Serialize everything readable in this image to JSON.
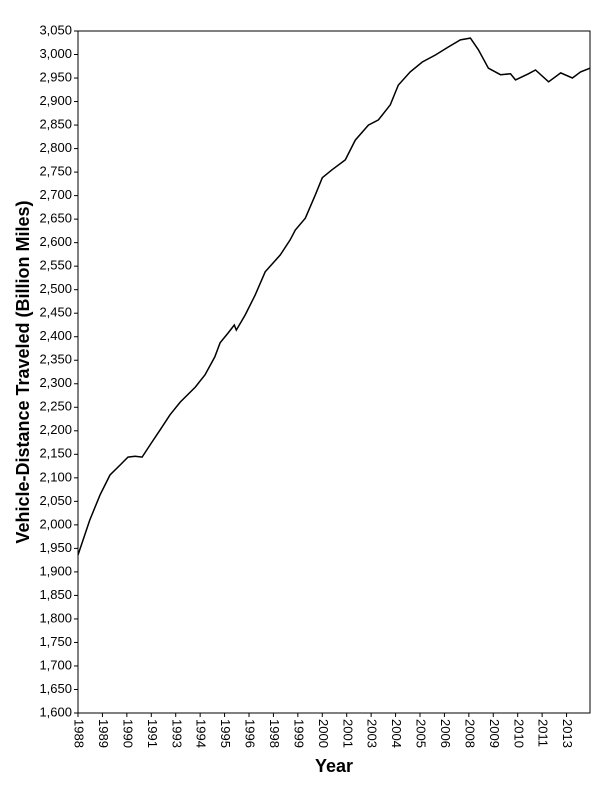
{
  "chart_data": {
    "type": "line",
    "x_label": "Year",
    "y_label": "Vehicle-Distance Traveled (Billion Miles)",
    "color": "#000000",
    "x": [
      1988,
      1988.6,
      1989.13,
      1989.64,
      1990.15,
      1990.56,
      1990.92,
      1991.28,
      1991.69,
      1992.2,
      1992.71,
      1993.23,
      1994.0,
      1994.5,
      1995.0,
      1995.27,
      1995.68,
      1996.0,
      1996.1,
      1996.55,
      1997.07,
      1997.58,
      1998.35,
      1998.86,
      1999.12,
      1999.63,
      2000.14,
      2000.5,
      2001.0,
      2001.68,
      2002.19,
      2002.86,
      2003.37,
      2003.98,
      2004.39,
      2005.0,
      2005.62,
      2006.29,
      2006.95,
      2007.57,
      2008.08,
      2008.49,
      2009.0,
      2009.62,
      2010.13,
      2010.39,
      2011.05,
      2011.41,
      2012.08,
      2012.7,
      2013.3,
      2013.72,
      2014.2
    ],
    "values": [
      1936,
      2010,
      2064,
      2106,
      2127,
      2144,
      2146,
      2144,
      2170,
      2202,
      2234,
      2261,
      2293,
      2319,
      2357,
      2387,
      2408,
      2425,
      2414,
      2446,
      2489,
      2538,
      2574,
      2606,
      2627,
      2652,
      2701,
      2738,
      2755,
      2776,
      2818,
      2850,
      2861,
      2893,
      2935,
      2963,
      2984,
      2999,
      3016,
      3031,
      3035,
      3010,
      2971,
      2957,
      2959,
      2946,
      2959,
      2967,
      2942,
      2961,
      2950,
      2963,
      2971
    ],
    "xlim": [
      1988,
      2014.2
    ],
    "xticks": [
      {
        "value": 1988,
        "label": "1988"
      },
      {
        "value": 1989.25,
        "label": "1989"
      },
      {
        "value": 1990.5,
        "label": "1990"
      },
      {
        "value": 1991.75,
        "label": "1991"
      },
      {
        "value": 1993,
        "label": "1993"
      },
      {
        "value": 1994.25,
        "label": "1994"
      },
      {
        "value": 1995.5,
        "label": "1995"
      },
      {
        "value": 1996.75,
        "label": "1996"
      },
      {
        "value": 1998,
        "label": "1998"
      },
      {
        "value": 1999.25,
        "label": "1999"
      },
      {
        "value": 2000.5,
        "label": "2000"
      },
      {
        "value": 2001.75,
        "label": "2001"
      },
      {
        "value": 2003,
        "label": "2003"
      },
      {
        "value": 2004.25,
        "label": "2004"
      },
      {
        "value": 2005.5,
        "label": "2005"
      },
      {
        "value": 2006.75,
        "label": "2006"
      },
      {
        "value": 2008,
        "label": "2008"
      },
      {
        "value": 2009.25,
        "label": "2009"
      },
      {
        "value": 2010.5,
        "label": "2010"
      },
      {
        "value": 2011.75,
        "label": "2011"
      },
      {
        "value": 2013,
        "label": "2013"
      }
    ],
    "ylim": [
      1600,
      3050
    ],
    "yticks": [
      {
        "value": 1600,
        "label": "1,600"
      },
      {
        "value": 1650,
        "label": "1,650"
      },
      {
        "value": 1700,
        "label": "1,700"
      },
      {
        "value": 1750,
        "label": "1,750"
      },
      {
        "value": 1800,
        "label": "1,800"
      },
      {
        "value": 1850,
        "label": "1,850"
      },
      {
        "value": 1900,
        "label": "1,900"
      },
      {
        "value": 1950,
        "label": "1,950"
      },
      {
        "value": 2000,
        "label": "2,000"
      },
      {
        "value": 2050,
        "label": "2,050"
      },
      {
        "value": 2100,
        "label": "2,100"
      },
      {
        "value": 2150,
        "label": "2,150"
      },
      {
        "value": 2200,
        "label": "2,200"
      },
      {
        "value": 2250,
        "label": "2,250"
      },
      {
        "value": 2300,
        "label": "2,300"
      },
      {
        "value": 2350,
        "label": "2,350"
      },
      {
        "value": 2400,
        "label": "2,400"
      },
      {
        "value": 2450,
        "label": "2,450"
      },
      {
        "value": 2500,
        "label": "2,500"
      },
      {
        "value": 2550,
        "label": "2,550"
      },
      {
        "value": 2600,
        "label": "2,600"
      },
      {
        "value": 2650,
        "label": "2,650"
      },
      {
        "value": 2700,
        "label": "2,700"
      },
      {
        "value": 2750,
        "label": "2,750"
      },
      {
        "value": 2800,
        "label": "2,800"
      },
      {
        "value": 2850,
        "label": "2,850"
      },
      {
        "value": 2900,
        "label": "2,900"
      },
      {
        "value": 2950,
        "label": "2,950"
      },
      {
        "value": 3000,
        "label": "3,000"
      },
      {
        "value": 3050,
        "label": "3,050"
      }
    ]
  }
}
